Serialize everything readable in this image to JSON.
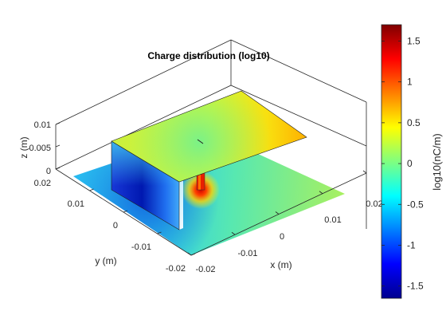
{
  "chart_data": {
    "type": "surface3d",
    "title": "Charge distribution (log10)",
    "xlabel": "x (m)",
    "ylabel": "y (m)",
    "zlabel": "z (m)",
    "colorbar_label": "log10(nC/m)",
    "colormap": "jet",
    "clim": [
      -1.65,
      1.7
    ],
    "x_ticks": [
      "-0.02",
      "-0.01",
      "0",
      "0.01",
      "0.02"
    ],
    "y_ticks": [
      "-0.02",
      "-0.01",
      "0",
      "0.01",
      "0.02"
    ],
    "z_ticks": [
      "0",
      "0.005",
      "0.01"
    ],
    "colorbar_ticks": [
      "-1.5",
      "-1",
      "-0.5",
      "0",
      "0.5",
      "1",
      "1.5"
    ],
    "colorbar_tick_values": [
      -1.5,
      -1,
      -0.5,
      0,
      0.5,
      1,
      1.5
    ],
    "surfaces": [
      {
        "name": "ground plane",
        "typical_value": -0.3,
        "range": [
          -1.2,
          0.3
        ]
      },
      {
        "name": "patch",
        "typical_value": 0.3,
        "range": [
          0.1,
          0.9
        ]
      },
      {
        "name": "side wall",
        "typical_value": -1.0,
        "range": [
          -1.6,
          -0.2
        ]
      },
      {
        "name": "feed",
        "typical_value": 1.5,
        "range": [
          1.2,
          1.7
        ]
      }
    ]
  }
}
